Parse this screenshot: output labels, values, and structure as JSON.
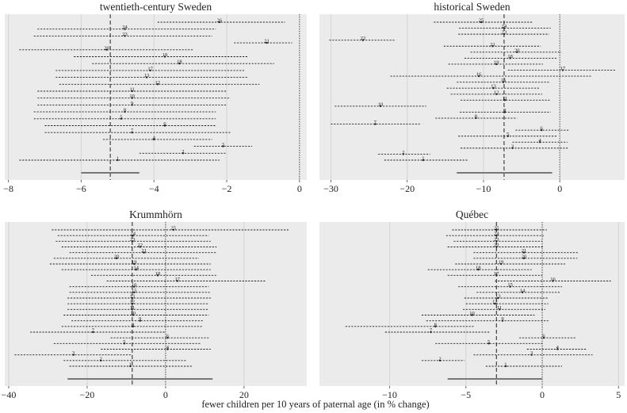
{
  "xlabel": "fewer children per 10 years of paternal age (in % change)",
  "chart_data": [
    {
      "type": "forest",
      "title": "twentieth-century Sweden",
      "xlim": [
        -8.1,
        0.2
      ],
      "ticks": [
        -8,
        -6,
        -4,
        -2,
        0
      ],
      "tick_labels": [
        "−8",
        "−6",
        "−4",
        "−2",
        "0"
      ],
      "pooled": {
        "estimate": -5.2,
        "lo": -6.0,
        "hi": -4.4
      },
      "rows": [
        {
          "id": "26",
          "est": -2.2,
          "lo": -3.9,
          "hi": -0.4
        },
        {
          "id": "24",
          "est": -4.8,
          "lo": -7.2,
          "hi": -2.3
        },
        {
          "id": "23",
          "est": -4.8,
          "lo": -7.3,
          "hi": -2.4
        },
        {
          "id": "21",
          "est": -0.9,
          "lo": -1.8,
          "hi": -0.2
        },
        {
          "id": "20",
          "est": -5.3,
          "lo": -7.7,
          "hi": -2.9
        },
        {
          "id": "19",
          "est": -3.7,
          "lo": -6.2,
          "hi": -1.4
        },
        {
          "id": "18",
          "est": -3.3,
          "lo": -5.7,
          "hi": -0.7
        },
        {
          "id": "17",
          "est": -4.1,
          "lo": -6.7,
          "hi": -1.5
        },
        {
          "id": "13",
          "est": -4.2,
          "lo": -6.7,
          "hi": -1.4
        },
        {
          "id": "12",
          "est": -3.9,
          "lo": -6.6,
          "hi": -1.1
        },
        {
          "id": "11",
          "est": -4.6,
          "lo": -7.2,
          "hi": -2.0
        },
        {
          "id": "10",
          "est": -4.6,
          "lo": -7.2,
          "hi": -1.9
        },
        {
          "id": "9",
          "est": -4.6,
          "lo": -7.2,
          "hi": -2.0
        },
        {
          "id": "8",
          "est": -4.8,
          "lo": -7.3,
          "hi": -2.3
        },
        {
          "id": "5",
          "est": -4.9,
          "lo": -7.3,
          "hi": -2.3
        },
        {
          "id": "6",
          "est": -3.7,
          "lo": -7.0,
          "hi": -2.3
        },
        {
          "id": "7",
          "est": -4.6,
          "lo": -7.0,
          "hi": -1.9
        },
        {
          "id": "4",
          "est": -4.0,
          "lo": -5.4,
          "hi": -2.4
        },
        {
          "id": "3",
          "est": -2.1,
          "lo": -2.9,
          "hi": -1.3
        },
        {
          "id": "2",
          "est": -3.2,
          "lo": -4.4,
          "hi": -2.0
        },
        {
          "id": "1",
          "est": -5.0,
          "lo": -7.7,
          "hi": -2.2
        }
      ]
    },
    {
      "type": "forest",
      "title": "historical Sweden",
      "xlim": [
        -31.5,
        8.5
      ],
      "ticks": [
        -30,
        -20,
        -10,
        0
      ],
      "tick_labels": [
        "−30",
        "−20",
        "−10",
        "0"
      ],
      "pooled": {
        "estimate": -7.3,
        "lo": -13.5,
        "hi": -1.0
      },
      "rows": [
        {
          "id": "25",
          "est": -10.3,
          "lo": -16.5,
          "hi": -3.5
        },
        {
          "id": "24",
          "est": -7.3,
          "lo": -13.2,
          "hi": -1.2
        },
        {
          "id": "23",
          "est": -7.3,
          "lo": -13.3,
          "hi": -1.4
        },
        {
          "id": "22",
          "est": -25.8,
          "lo": -30.2,
          "hi": -21.5
        },
        {
          "id": "21",
          "est": -8.8,
          "lo": -15.2,
          "hi": -2.5
        },
        {
          "id": "20",
          "est": -5.6,
          "lo": -11.7,
          "hi": 0.2
        },
        {
          "id": "18",
          "est": -6.5,
          "lo": -12.5,
          "hi": -0.3
        },
        {
          "id": "19",
          "est": -8.3,
          "lo": -14.6,
          "hi": -2.2
        },
        {
          "id": "17",
          "est": 0.4,
          "lo": -6.8,
          "hi": 7.3
        },
        {
          "id": "16",
          "est": -10.6,
          "lo": -22.2,
          "hi": 4.2
        },
        {
          "id": "15",
          "est": -7.4,
          "lo": -13.5,
          "hi": -1.3
        },
        {
          "id": "13",
          "est": -8.7,
          "lo": -14.8,
          "hi": -2.6
        },
        {
          "id": "12",
          "est": -8.3,
          "lo": -14.3,
          "hi": -2.3
        },
        {
          "id": "11",
          "est": -7.2,
          "lo": -13.0,
          "hi": -1.3
        },
        {
          "id": "10",
          "est": -23.5,
          "lo": -29.5,
          "hi": -17.5
        },
        {
          "id": "9",
          "est": -7.2,
          "lo": -13.1,
          "hi": -1.2
        },
        {
          "id": "8",
          "est": -11.0,
          "lo": -16.3,
          "hi": -5.6
        },
        {
          "id": "7",
          "est": -24.2,
          "lo": -30.0,
          "hi": -18.3
        },
        {
          "id": "6",
          "est": -2.4,
          "lo": -5.8,
          "hi": 1.2
        },
        {
          "id": "5",
          "est": -6.8,
          "lo": -13.3,
          "hi": -0.3
        },
        {
          "id": "4",
          "est": -2.6,
          "lo": -6.2,
          "hi": 1.0
        },
        {
          "id": "3",
          "est": -6.2,
          "lo": -13.0,
          "hi": 1.2
        },
        {
          "id": "2",
          "est": -20.5,
          "lo": -23.8,
          "hi": -17.0
        },
        {
          "id": "1",
          "est": -17.9,
          "lo": -23.0,
          "hi": -12.0
        }
      ]
    },
    {
      "type": "forest",
      "title": "Krummhörn",
      "xlim": [
        -41,
        36
      ],
      "ticks": [
        -40,
        -20,
        0,
        20
      ],
      "tick_labels": [
        "−40",
        "−20",
        "0",
        "20"
      ],
      "pooled": {
        "estimate": -8.5,
        "lo": -25,
        "hi": 12
      },
      "rows": [
        {
          "id": "25",
          "est": 2.0,
          "lo": -29.0,
          "hi": 31.5
        },
        {
          "id": "24",
          "est": -8.3,
          "lo": -27.5,
          "hi": 11.0
        },
        {
          "id": "23",
          "est": -8.4,
          "lo": -28.0,
          "hi": 11.5
        },
        {
          "id": "22",
          "est": -6.5,
          "lo": -26.5,
          "hi": 13.0
        },
        {
          "id": "21",
          "est": -5.5,
          "lo": -24.5,
          "hi": 13.0
        },
        {
          "id": "20",
          "est": -12.5,
          "lo": -28.5,
          "hi": 8.5
        },
        {
          "id": "19",
          "est": -8.0,
          "lo": -29.5,
          "hi": 11.5
        },
        {
          "id": "14",
          "est": -7.5,
          "lo": -26.5,
          "hi": 11.5
        },
        {
          "id": "18",
          "est": -2.0,
          "lo": -19.0,
          "hi": 13.0
        },
        {
          "id": "17",
          "est": 3.0,
          "lo": -15.0,
          "hi": 25.5
        },
        {
          "id": "16",
          "est": -8.0,
          "lo": -24.5,
          "hi": 11.0
        },
        {
          "id": "15",
          "est": -8.0,
          "lo": -24.5,
          "hi": 11.5
        },
        {
          "id": "13",
          "est": -8.5,
          "lo": -25.0,
          "hi": 11.5
        },
        {
          "id": "12",
          "est": -8.5,
          "lo": -25.0,
          "hi": 11.0
        },
        {
          "id": "11",
          "est": -8.5,
          "lo": -25.0,
          "hi": 11.0
        },
        {
          "id": "10",
          "est": -8.3,
          "lo": -26.0,
          "hi": 11.0
        },
        {
          "id": "9",
          "est": -6.5,
          "lo": -24.0,
          "hi": 9.5
        },
        {
          "id": "8",
          "est": -8.3,
          "lo": -26.5,
          "hi": 9.5
        },
        {
          "id": "7",
          "est": -18.5,
          "lo": -34.5,
          "hi": 0.0
        },
        {
          "id": "6",
          "est": 0.5,
          "lo": -14.0,
          "hi": 11.0
        },
        {
          "id": "5",
          "est": -10.5,
          "lo": -28.5,
          "hi": 9.0
        },
        {
          "id": "4",
          "est": 0.5,
          "lo": -16.5,
          "hi": 11.5
        },
        {
          "id": "3",
          "est": -23.5,
          "lo": -38.5,
          "hi": -8.5
        },
        {
          "id": "2",
          "est": -16.5,
          "lo": -26.0,
          "hi": 5.5
        },
        {
          "id": "1",
          "est": -9.0,
          "lo": -24.5,
          "hi": 7.0
        }
      ]
    },
    {
      "type": "forest",
      "title": "Québec",
      "xlim": [
        -14.6,
        5.4
      ],
      "ticks": [
        -10,
        -5,
        0,
        5
      ],
      "tick_labels": [
        "−10",
        "−5",
        "0",
        "5"
      ],
      "pooled": {
        "estimate": -3.0,
        "lo": -6.2,
        "hi": 0.0
      },
      "rows": [
        {
          "id": "25",
          "est": -3.0,
          "lo": -5.9,
          "hi": 0.3
        },
        {
          "id": "24",
          "est": -3.0,
          "lo": -6.3,
          "hi": 0.1
        },
        {
          "id": "23",
          "est": -3.0,
          "lo": -5.8,
          "hi": 0.0
        },
        {
          "id": "22",
          "est": -3.0,
          "lo": -6.2,
          "hi": 0.1
        },
        {
          "id": "21",
          "est": -1.2,
          "lo": -4.5,
          "hi": 2.4
        },
        {
          "id": "20",
          "est": -1.2,
          "lo": -4.5,
          "hi": 2.3
        },
        {
          "id": "19",
          "est": -2.7,
          "lo": -5.7,
          "hi": 1.5
        },
        {
          "id": "18",
          "est": -4.2,
          "lo": -7.5,
          "hi": -0.7
        },
        {
          "id": "17",
          "est": -3.0,
          "lo": -6.2,
          "hi": 0.0
        },
        {
          "id": "16",
          "est": 0.7,
          "lo": -3.1,
          "hi": 4.5
        },
        {
          "id": "15",
          "est": -2.1,
          "lo": -5.5,
          "hi": 1.3
        },
        {
          "id": "14",
          "est": -1.3,
          "lo": -4.3,
          "hi": 1.2
        },
        {
          "id": "13",
          "est": -2.9,
          "lo": -5.1,
          "hi": 0.4
        },
        {
          "id": "12",
          "est": -3.1,
          "lo": -5.0,
          "hi": 0.4
        },
        {
          "id": "11",
          "est": -2.8,
          "lo": -5.2,
          "hi": 0.2
        },
        {
          "id": "10",
          "est": -4.6,
          "lo": -7.9,
          "hi": -0.5
        },
        {
          "id": "9",
          "est": -2.6,
          "lo": -7.6,
          "hi": 0.4
        },
        {
          "id": "8",
          "est": -7.0,
          "lo": -12.9,
          "hi": -4.5
        },
        {
          "id": "7",
          "est": -7.3,
          "lo": -10.3,
          "hi": -3.4
        },
        {
          "id": "6",
          "est": 0.1,
          "lo": -1.5,
          "hi": 2.2
        },
        {
          "id": "5",
          "est": -3.5,
          "lo": -7.0,
          "hi": 0.1
        },
        {
          "id": "4",
          "est": 1.0,
          "lo": -1.0,
          "hi": 2.9
        },
        {
          "id": "3",
          "est": -0.7,
          "lo": -4.5,
          "hi": 3.3
        },
        {
          "id": "2",
          "est": -6.7,
          "lo": -7.9,
          "hi": -5.1
        },
        {
          "id": "1",
          "est": -2.4,
          "lo": -3.7,
          "hi": 1.3
        }
      ]
    }
  ]
}
